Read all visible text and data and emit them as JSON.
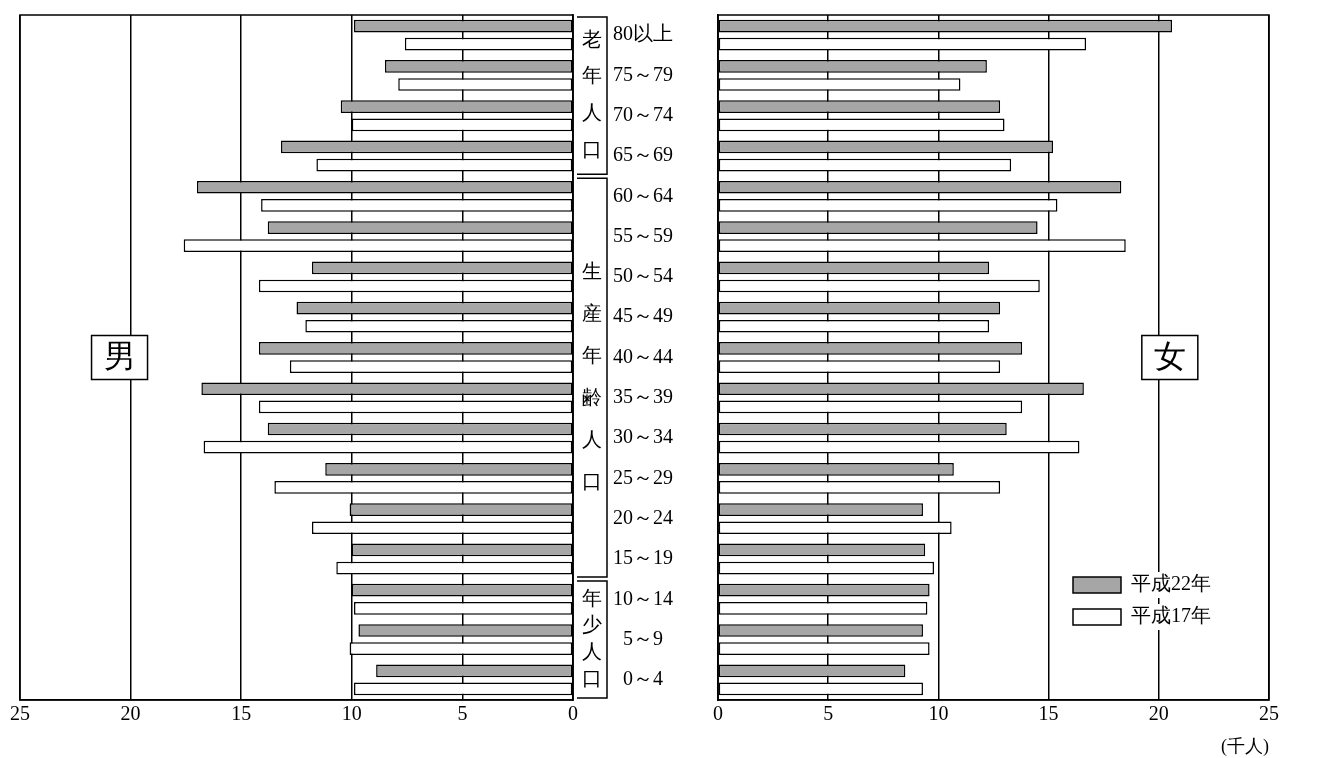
{
  "chart_data": [
    {
      "type": "bar",
      "orientation": "horizontal",
      "categories": [
        "80以上",
        "75～79",
        "70～74",
        "65～69",
        "60～64",
        "55～59",
        "50～54",
        "45～49",
        "40～44",
        "35～39",
        "30～34",
        "25～29",
        "20～24",
        "15～19",
        "10～14",
        "5～9",
        "0～4"
      ],
      "series": [
        {
          "color": "#a6a6a6",
          "values": [
            9.9,
            8.5,
            10.5,
            13.2,
            17.0,
            13.8,
            11.8,
            12.5,
            14.2,
            16.8,
            13.8,
            11.2,
            10.1,
            10.0,
            10.0,
            9.7,
            8.9
          ]
        },
        {
          "color": "#ffffff",
          "values": [
            7.6,
            7.9,
            10.0,
            11.6,
            14.1,
            17.6,
            14.2,
            12.1,
            12.8,
            14.2,
            16.7,
            13.5,
            11.8,
            10.7,
            9.9,
            10.1,
            9.9
          ]
        }
      ],
      "xlim": [
        25,
        0
      ],
      "xticks": [
        25,
        20,
        15,
        10,
        5,
        0
      ],
      "grid": "x",
      "legend": false,
      "annotations": [
        "男",
        "老年人口",
        "生産年齢人口",
        "年少人口"
      ]
    },
    {
      "type": "bar",
      "orientation": "horizontal",
      "categories": [
        null,
        null,
        null,
        null,
        null,
        null,
        null,
        null,
        null,
        null,
        null,
        null,
        null,
        null,
        null,
        null,
        null
      ],
      "series": [
        {
          "name": "平成22年",
          "color": "#a6a6a6",
          "values": [
            20.6,
            12.2,
            12.8,
            15.2,
            18.3,
            14.5,
            12.3,
            12.8,
            13.8,
            16.6,
            13.1,
            10.7,
            9.3,
            9.4,
            9.6,
            9.3,
            8.5
          ]
        },
        {
          "name": "平成17年",
          "color": "#ffffff",
          "values": [
            16.7,
            11.0,
            13.0,
            13.3,
            15.4,
            18.5,
            14.6,
            12.3,
            12.8,
            13.8,
            16.4,
            12.8,
            10.6,
            9.8,
            9.5,
            9.6,
            9.3
          ]
        }
      ],
      "xlim": [
        0,
        25
      ],
      "xticks": [
        0,
        5,
        10,
        15,
        20,
        25
      ],
      "xlabel": "(千人)",
      "grid": "x",
      "legend": "bottom right",
      "tick_labels": "x",
      "annotations": [
        "女"
      ]
    }
  ]
}
